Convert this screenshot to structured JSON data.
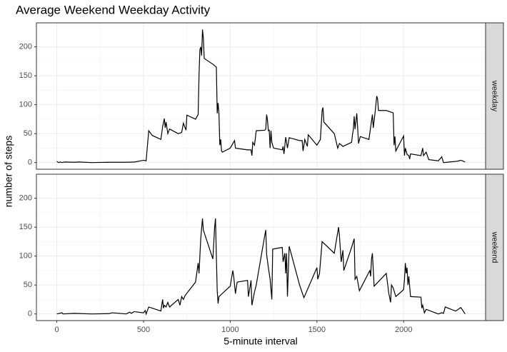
{
  "chart_data": {
    "type": "line",
    "title": "Average Weekend Weekday Activity",
    "x_label": "5-minute interval",
    "y_label": "number of steps",
    "xlim": [
      -117.75,
      2472.75
    ],
    "xticks": [
      0,
      500,
      1000,
      1500,
      2000
    ],
    "ylim": [
      -11.5,
      241.5
    ],
    "yticks": [
      0,
      50,
      100,
      150,
      200
    ],
    "grid": true,
    "color": "#000000",
    "series": [
      {
        "name": "weekday",
        "x": [
          0,
          10,
          20,
          30,
          45,
          100,
          130,
          200,
          300,
          400,
          450,
          500,
          515,
          520,
          530,
          550,
          600,
          610,
          620,
          625,
          630,
          640,
          650,
          700,
          720,
          730,
          740,
          745,
          750,
          800,
          815,
          820,
          825,
          830,
          835,
          840,
          845,
          850,
          900,
          920,
          925,
          930,
          935,
          940,
          945,
          950,
          955,
          1000,
          1025,
          1030,
          1100,
          1120,
          1125,
          1130,
          1140,
          1150,
          1200,
          1205,
          1210,
          1215,
          1220,
          1225,
          1230,
          1235,
          1240,
          1250,
          1300,
          1305,
          1310,
          1320,
          1330,
          1340,
          1400,
          1415,
          1420,
          1430,
          1445,
          1450,
          1500,
          1520,
          1530,
          1535,
          1540,
          1600,
          1620,
          1630,
          1650,
          1700,
          1705,
          1710,
          1715,
          1720,
          1730,
          1735,
          1740,
          1750,
          1800,
          1820,
          1825,
          1835,
          1845,
          1850,
          1855,
          1900,
          1940,
          1945,
          1950,
          1955,
          2000,
          2005,
          2010,
          2020,
          2030,
          2035,
          2040,
          2100,
          2110,
          2115,
          2130,
          2145,
          2200,
          2215,
          2220,
          2230,
          2300,
          2320,
          2330,
          2355
        ],
        "values": [
          2,
          0,
          1,
          0,
          1,
          0.5,
          1,
          0,
          0.5,
          0.5,
          1,
          4,
          3,
          20,
          55,
          47,
          40,
          62,
          76,
          60,
          70,
          50,
          58,
          50,
          52,
          68,
          60,
          56,
          82,
          75,
          83,
          150,
          195,
          200,
          185,
          230,
          215,
          180,
          170,
          165,
          85,
          103,
          85,
          30,
          40,
          20,
          18,
          25,
          38,
          25,
          22,
          22,
          12,
          35,
          30,
          55,
          56,
          58,
          83,
          73,
          55,
          56,
          25,
          55,
          35,
          25,
          22,
          28,
          15,
          44,
          25,
          43,
          38,
          38,
          20,
          40,
          28,
          48,
          30,
          40,
          90,
          95,
          70,
          50,
          25,
          33,
          28,
          35,
          48,
          57,
          80,
          58,
          85,
          60,
          33,
          45,
          40,
          83,
          60,
          85,
          115,
          110,
          90,
          90,
          86,
          30,
          45,
          20,
          46,
          12,
          25,
          14,
          12,
          6,
          15,
          12,
          25,
          12,
          18,
          5,
          3,
          8,
          10,
          0,
          2,
          3,
          4,
          1
        ]
      },
      {
        "name": "weekend",
        "x": [
          0,
          30,
          35,
          100,
          200,
          300,
          320,
          400,
          420,
          430,
          445,
          500,
          510,
          515,
          530,
          600,
          610,
          615,
          620,
          630,
          640,
          650,
          700,
          710,
          720,
          730,
          740,
          800,
          815,
          820,
          830,
          840,
          845,
          900,
          910,
          915,
          920,
          925,
          930,
          935,
          1000,
          1015,
          1020,
          1030,
          1040,
          1100,
          1105,
          1120,
          1125,
          1140,
          1150,
          1200,
          1205,
          1210,
          1220,
          1230,
          1240,
          1245,
          1300,
          1305,
          1315,
          1320,
          1325,
          1330,
          1340,
          1400,
          1425,
          1500,
          1505,
          1515,
          1530,
          1600,
          1625,
          1630,
          1640,
          1650,
          1655,
          1700,
          1715,
          1720,
          1730,
          1745,
          1805,
          1810,
          1815,
          1820,
          1830,
          1900,
          1915,
          1925,
          1930,
          1940,
          1955,
          2000,
          2005,
          2010,
          2015,
          2020,
          2025,
          2030,
          2040,
          2100,
          2105,
          2110,
          2120,
          2130,
          2200,
          2220,
          2230,
          2240,
          2300,
          2330,
          2355
        ],
        "values": [
          0,
          2,
          0,
          1,
          0,
          0.5,
          2,
          0,
          3,
          1,
          4,
          2,
          6,
          0,
          12,
          5,
          25,
          10,
          15,
          12,
          20,
          12,
          25,
          15,
          30,
          25,
          32,
          55,
          88,
          70,
          130,
          165,
          145,
          95,
          150,
          165,
          100,
          40,
          18,
          30,
          48,
          75,
          65,
          35,
          55,
          58,
          30,
          58,
          15,
          38,
          50,
          137,
          145,
          103,
          80,
          60,
          25,
          112,
          115,
          90,
          105,
          70,
          105,
          30,
          117,
          50,
          28,
          80,
          60,
          70,
          125,
          105,
          150,
          135,
          90,
          110,
          75,
          115,
          130,
          60,
          65,
          40,
          75,
          65,
          95,
          105,
          48,
          70,
          35,
          20,
          50,
          45,
          30,
          42,
          60,
          88,
          70,
          80,
          50,
          65,
          30,
          29,
          10,
          15,
          2,
          8,
          0,
          2,
          1,
          12,
          5,
          11,
          0
        ]
      }
    ]
  }
}
